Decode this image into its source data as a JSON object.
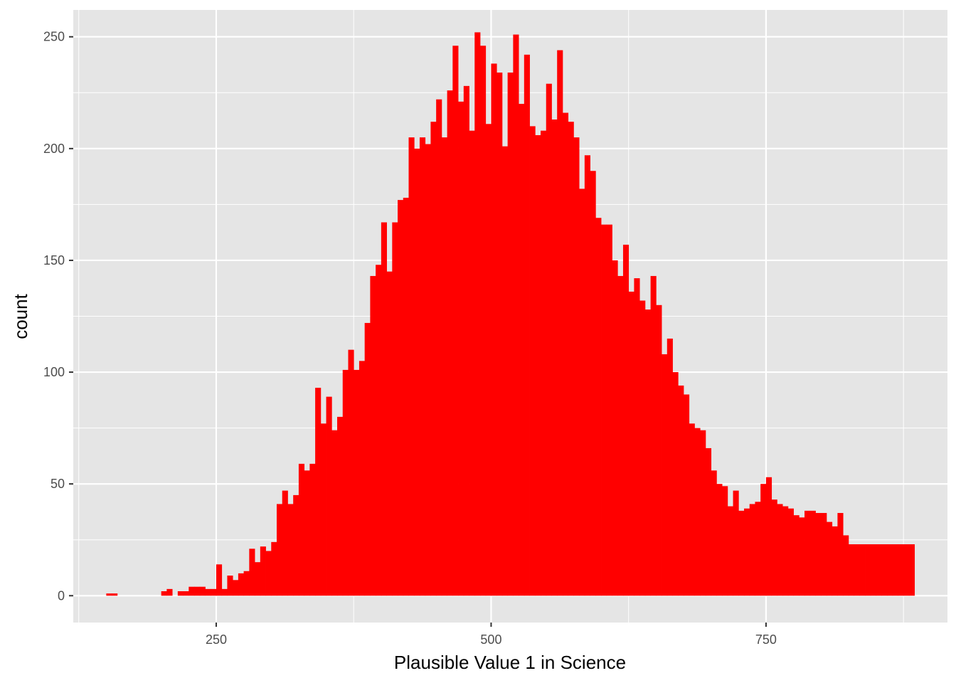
{
  "chart_data": {
    "type": "bar",
    "subtype": "histogram",
    "xlabel": "Plausible Value 1 in Science",
    "ylabel": "count",
    "xlim": [
      120,
      915
    ],
    "ylim": [
      -12,
      262
    ],
    "x_ticks": [
      250,
      500,
      750
    ],
    "x_tick_labels": [
      "250",
      "500",
      "750"
    ],
    "y_ticks": [
      0,
      50,
      100,
      150,
      200,
      250
    ],
    "y_tick_labels": [
      "0",
      "50",
      "100",
      "150",
      "200",
      "250"
    ],
    "grid": true,
    "bin_width": 5,
    "bins_start": 150,
    "bar_color": "#ff0000",
    "panel_background": "#e5e5e5",
    "grid_color": "#ffffff",
    "counts": [
      1,
      1,
      0,
      0,
      0,
      0,
      0,
      0,
      0,
      0,
      2,
      3,
      0,
      2,
      2,
      4,
      4,
      4,
      3,
      3,
      14,
      3,
      9,
      7,
      10,
      11,
      21,
      15,
      22,
      20,
      24,
      41,
      47,
      41,
      45,
      59,
      56,
      59,
      93,
      77,
      89,
      74,
      80,
      101,
      110,
      101,
      105,
      122,
      143,
      148,
      167,
      145,
      167,
      177,
      178,
      205,
      200,
      205,
      202,
      212,
      222,
      205,
      226,
      246,
      221,
      228,
      208,
      252,
      246,
      211,
      238,
      234,
      201,
      234,
      251,
      220,
      242,
      210,
      206,
      208,
      229,
      213,
      244,
      216,
      212,
      205,
      182,
      197,
      190,
      169,
      166,
      166,
      150,
      143,
      157,
      136,
      142,
      132,
      128,
      143,
      130,
      108,
      115,
      100,
      94,
      90,
      77,
      75,
      74,
      66,
      56,
      50,
      49,
      40,
      47,
      38,
      39,
      41,
      42,
      50,
      53,
      43,
      41,
      40,
      39,
      36,
      35,
      38,
      38,
      37,
      37,
      33,
      31,
      37,
      27,
      23,
      23,
      23,
      23,
      23,
      23,
      23,
      23,
      23,
      23,
      23,
      23
    ]
  }
}
